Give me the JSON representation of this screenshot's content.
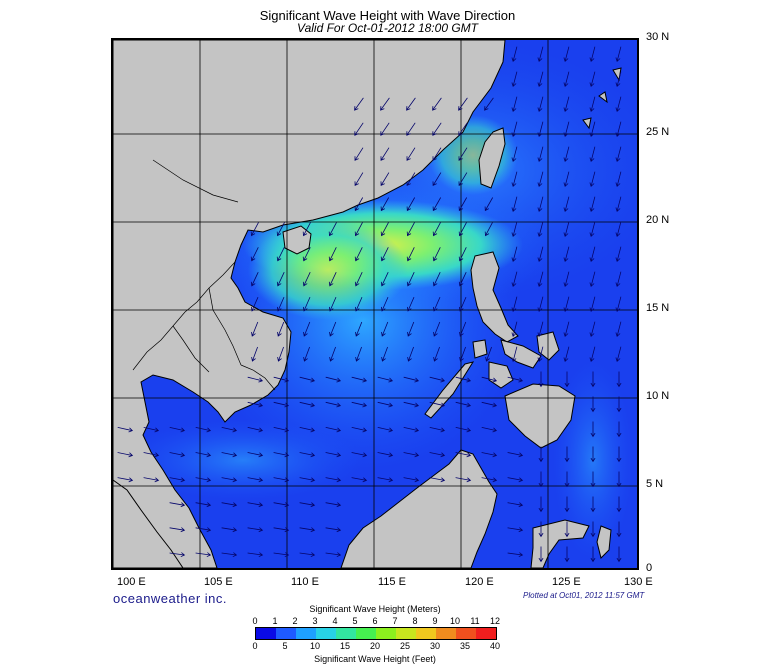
{
  "header": {
    "title": "Significant Wave Height with Wave Direction",
    "subtitle": "Valid For Oct-01-2012 18:00 GMT"
  },
  "map": {
    "lat_labels": [
      "30 N",
      "25 N",
      "20 N",
      "15 N",
      "10 N",
      "5 N",
      "0"
    ],
    "lon_labels": [
      "100 E",
      "105 E",
      "110 E",
      "115 E",
      "120 E",
      "125 E",
      "130 E"
    ],
    "land_color": "#c4c4c4",
    "sea_color": "#1030e8",
    "grid": true
  },
  "footer": {
    "brand": "oceanweather inc.",
    "plotted": "Plotted at Oct01, 2012 11:57 GMT"
  },
  "colorbar": {
    "meters_title": "Significant Wave Height (Meters)",
    "feet_title": "Significant Wave Height (Feet)",
    "meters_ticks": [
      "0",
      "1",
      "2",
      "3",
      "4",
      "5",
      "6",
      "7",
      "8",
      "9",
      "10",
      "11",
      "12"
    ],
    "feet_ticks": [
      "0",
      "5",
      "10",
      "15",
      "20",
      "25",
      "30",
      "35",
      "40"
    ],
    "colors": [
      "#0a0ae6",
      "#1e5aff",
      "#1ea0ff",
      "#28d2e6",
      "#32e6a0",
      "#46f050",
      "#8cf01e",
      "#c8e61e",
      "#f0c81e",
      "#f08c1e",
      "#f0501e",
      "#f01e1e"
    ]
  }
}
